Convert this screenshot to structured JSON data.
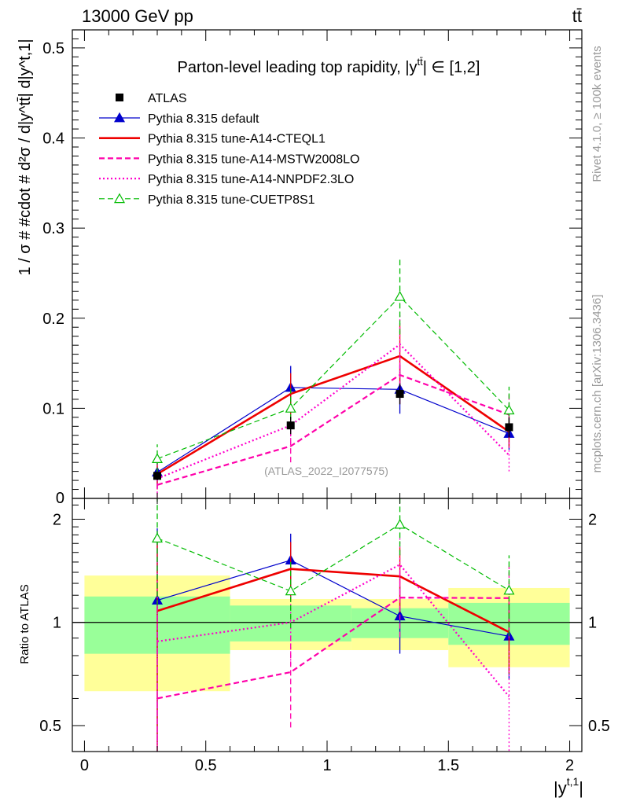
{
  "header": {
    "left": "13000 GeV pp",
    "right": "tt̄"
  },
  "side": {
    "rivet": "Rivet 4.1.0, ≥ 100k events",
    "mcplots": "mcplots.cern.ch [arXiv:1306.3436]"
  },
  "chart_data": {
    "type": "line",
    "title": "Parton-level leading top rapidity, |y",
    "title_sup": "tt̄",
    "title_tail": "| ∈ [1,2]",
    "watermark": "(ATLAS_2022_I2077575)",
    "ylabel_main": "1 / σ # #cdot # d²σ / d|y^tt̄| d|y^t,1|",
    "ylabel_ratio": "Ratio to ATLAS",
    "xlabel": "|y",
    "xlabel_sup": "t,1",
    "xlabel_tail": "|",
    "xlim": [
      -0.05,
      2.05
    ],
    "ylim_main": [
      0,
      0.52
    ],
    "ylim_ratio": [
      0.42,
      2.3
    ],
    "x_ticks": [
      0,
      0.5,
      1,
      1.5,
      2
    ],
    "x_tick_labels": [
      "0",
      "0.5",
      "1",
      "1.5",
      "2"
    ],
    "y_ticks_main": [
      0.1,
      0.2,
      0.3,
      0.4,
      0.5
    ],
    "y_tick_labels_main": [
      "0.1",
      "0.2",
      "0.3",
      "0.4",
      "0.5"
    ],
    "y_zero_label": "0",
    "y_ticks_ratio": [
      0.5,
      1,
      2
    ],
    "y_tick_labels_ratio": [
      "0.5",
      "1",
      "2"
    ],
    "bins": [
      [
        0,
        0.6
      ],
      [
        0.6,
        1.1
      ],
      [
        1.1,
        1.5
      ],
      [
        1.5,
        2.0
      ]
    ],
    "x": [
      0.3,
      0.85,
      1.3,
      1.75
    ],
    "data": {
      "name": "ATLAS",
      "values": [
        0.025,
        0.081,
        0.116,
        0.079
      ],
      "stat_band_rel": [
        0.19,
        0.12,
        0.1,
        0.14
      ],
      "total_band_rel": [
        0.37,
        0.17,
        0.17,
        0.26
      ]
    },
    "series": [
      {
        "name": "Pythia 8.315 default",
        "color": "#0000cc",
        "style": "solid",
        "marker": "triangle-filled",
        "width": 1.2,
        "values": [
          0.029,
          0.123,
          0.121,
          0.072
        ],
        "errors": [
          0.018,
          0.024,
          0.027,
          0.018
        ]
      },
      {
        "name": "Pythia 8.315 tune-A14-CTEQL1",
        "color": "#ee0000",
        "style": "solid",
        "marker": "none",
        "width": 2.6,
        "values": [
          0.027,
          0.116,
          0.158,
          0.074
        ],
        "errors": [
          0.017,
          0.023,
          0.034,
          0.018
        ]
      },
      {
        "name": "Pythia 8.315 tune-A14-MSTW2008LO",
        "color": "#ff00aa",
        "style": "dashed",
        "marker": "none",
        "width": 2.2,
        "values": [
          0.015,
          0.058,
          0.137,
          0.093
        ],
        "errors": [
          0.014,
          0.018,
          0.032,
          0.022
        ]
      },
      {
        "name": "Pythia 8.315 tune-A14-NNPDF2.3LO",
        "color": "#ff00cc",
        "style": "dotted",
        "marker": "none",
        "width": 2.2,
        "values": [
          0.022,
          0.081,
          0.171,
          0.048
        ],
        "errors": [
          0.016,
          0.02,
          0.035,
          0.018
        ]
      },
      {
        "name": "Pythia 8.315 tune-CUETP8S1",
        "color": "#00bb00",
        "style": "dashed",
        "marker": "triangle-open",
        "width": 1.2,
        "values": [
          0.044,
          0.1,
          0.224,
          0.098
        ],
        "errors": [
          0.016,
          0.022,
          0.042,
          0.026
        ]
      }
    ]
  }
}
